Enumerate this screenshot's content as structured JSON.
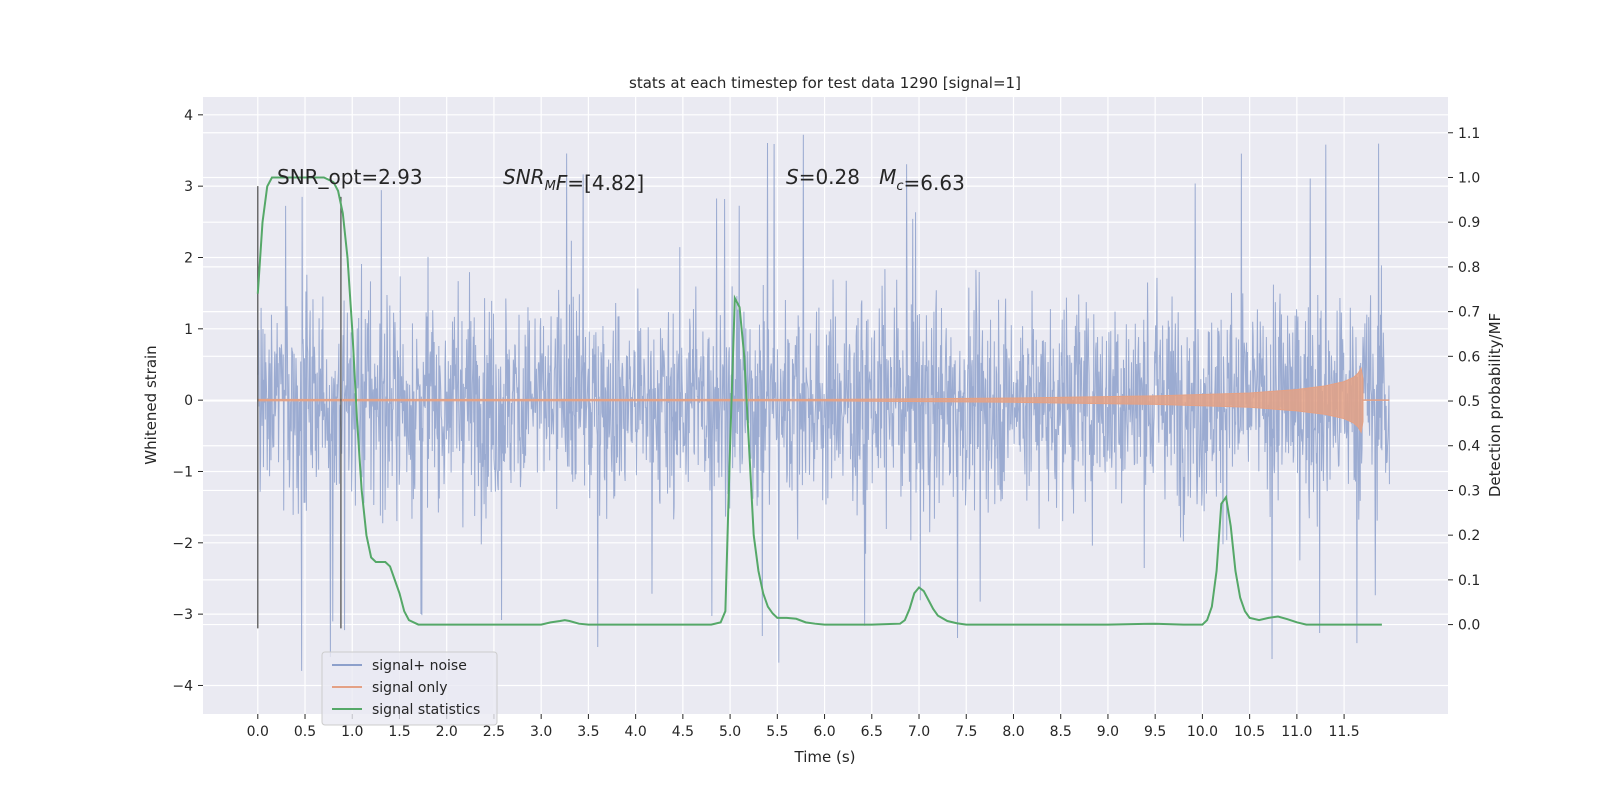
{
  "chart_data": {
    "type": "line",
    "title": "stats at each timestep for test data 1290 [signal=1]",
    "xlabel": "Time (s)",
    "ylabel_left": "Whitened strain",
    "ylabel_right": "Detection probability/MF",
    "xlim": [
      -0.58,
      12.6
    ],
    "ylim_left": [
      -4.4,
      4.25
    ],
    "ylim_right": [
      -0.2,
      1.18
    ],
    "x_ticks": [
      "0.0",
      "0.5",
      "1.0",
      "1.5",
      "2.0",
      "2.5",
      "3.0",
      "3.5",
      "4.0",
      "4.5",
      "5.0",
      "5.5",
      "6.0",
      "6.5",
      "7.0",
      "7.5",
      "8.0",
      "8.5",
      "9.0",
      "9.5",
      "10.0",
      "10.5",
      "11.0",
      "11.5"
    ],
    "y_ticks_left": [
      "−4",
      "−3",
      "−2",
      "−1",
      "0",
      "1",
      "2",
      "3",
      "4"
    ],
    "y_ticks_right": [
      "0.0",
      "0.1",
      "0.2",
      "0.3",
      "0.4",
      "0.5",
      "0.6",
      "0.7",
      "0.8",
      "0.9",
      "1.0",
      "1.1"
    ],
    "grid": true,
    "legend_position": "lower-left",
    "annotations": [
      {
        "parts": [
          {
            "t": "SNR_opt=2.93",
            "style": "normal"
          }
        ]
      },
      {
        "parts": [
          {
            "t": "SNR",
            "style": "italic"
          },
          {
            "t": "M",
            "style": "italic-sub"
          },
          {
            "t": "F",
            "style": "italic"
          },
          {
            "t": "=[4.82]",
            "style": "normal"
          }
        ]
      },
      {
        "parts": [
          {
            "t": "S",
            "style": "italic"
          },
          {
            "t": "=0.28   ",
            "style": "normal"
          },
          {
            "t": "M",
            "style": "italic"
          },
          {
            "t": "c",
            "style": "italic-sub"
          },
          {
            "t": "=6.63",
            "style": "normal"
          }
        ]
      }
    ],
    "vertical_lines": [
      {
        "x": 0.0,
        "ymin": -3.2,
        "ymax": 3.0
      },
      {
        "x": 0.88,
        "ymin": -3.2,
        "ymax": 2.85
      }
    ],
    "series": [
      {
        "name": "signal+ noise",
        "color": "#8da0cb",
        "axis": "left",
        "x_range": [
          0.0,
          11.98
        ],
        "envelope": {
          "upper_typical": 1.8,
          "lower_typical": -1.8,
          "max": 3.85,
          "min": -4.05
        }
      },
      {
        "name": "signal only",
        "color": "#e4a185",
        "axis": "left",
        "x": [
          0.0,
          6.0,
          8.0,
          9.5,
          10.5,
          11.0,
          11.3,
          11.5,
          11.6,
          11.65,
          11.68,
          11.7
        ],
        "amplitude": [
          0.01,
          0.01,
          0.03,
          0.06,
          0.1,
          0.15,
          0.2,
          0.26,
          0.32,
          0.38,
          0.45,
          0.3
        ]
      },
      {
        "name": "signal statistics",
        "color": "#55a868",
        "axis": "right",
        "x": [
          0.0,
          0.05,
          0.1,
          0.15,
          0.2,
          0.3,
          0.4,
          0.5,
          0.6,
          0.7,
          0.8,
          0.85,
          0.9,
          0.95,
          1.0,
          1.05,
          1.1,
          1.15,
          1.2,
          1.25,
          1.3,
          1.35,
          1.4,
          1.45,
          1.5,
          1.55,
          1.6,
          1.7,
          1.8,
          2.0,
          2.5,
          3.0,
          3.1,
          3.2,
          3.25,
          3.3,
          3.4,
          3.5,
          3.7,
          4.0,
          4.5,
          4.8,
          4.9,
          4.95,
          5.0,
          5.05,
          5.1,
          5.15,
          5.2,
          5.25,
          5.3,
          5.35,
          5.4,
          5.45,
          5.5,
          5.55,
          5.6,
          5.7,
          5.8,
          5.9,
          6.0,
          6.5,
          6.8,
          6.85,
          6.9,
          6.95,
          7.0,
          7.05,
          7.1,
          7.15,
          7.2,
          7.3,
          7.4,
          7.5,
          7.7,
          8.0,
          8.5,
          9.0,
          9.5,
          9.8,
          10.0,
          10.05,
          10.1,
          10.15,
          10.2,
          10.25,
          10.3,
          10.35,
          10.4,
          10.45,
          10.5,
          10.6,
          10.7,
          10.8,
          10.9,
          11.0,
          11.1,
          11.3,
          11.6,
          11.9
        ],
        "y": [
          0.74,
          0.9,
          0.98,
          1.0,
          1.0,
          1.0,
          1.0,
          1.0,
          1.0,
          1.0,
          0.99,
          0.97,
          0.92,
          0.82,
          0.66,
          0.46,
          0.3,
          0.2,
          0.15,
          0.14,
          0.14,
          0.14,
          0.13,
          0.1,
          0.07,
          0.03,
          0.01,
          0.0,
          0.0,
          0.0,
          0.0,
          0.0,
          0.005,
          0.008,
          0.01,
          0.008,
          0.002,
          0.0,
          0.0,
          0.0,
          0.0,
          0.0,
          0.005,
          0.03,
          0.4,
          0.73,
          0.71,
          0.6,
          0.4,
          0.2,
          0.12,
          0.07,
          0.04,
          0.025,
          0.015,
          0.015,
          0.015,
          0.013,
          0.005,
          0.002,
          0.0,
          0.0,
          0.002,
          0.01,
          0.035,
          0.07,
          0.083,
          0.075,
          0.055,
          0.035,
          0.02,
          0.008,
          0.003,
          0.0,
          0.0,
          0.0,
          0.0,
          0.0,
          0.002,
          0.0,
          0.0,
          0.01,
          0.04,
          0.12,
          0.27,
          0.285,
          0.22,
          0.12,
          0.06,
          0.03,
          0.015,
          0.01,
          0.015,
          0.018,
          0.012,
          0.005,
          0.0,
          0.0,
          0.0,
          0.0
        ]
      }
    ]
  }
}
